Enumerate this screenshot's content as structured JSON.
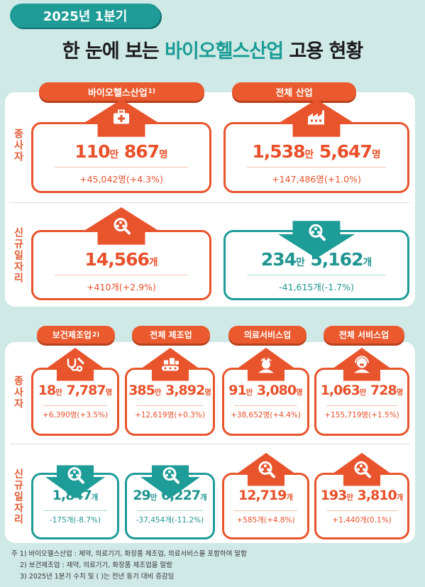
{
  "header": {
    "badge": "2025년 1분기",
    "title_prefix": "한 눈에 보는 ",
    "title_highlight": "바이오헬스산업",
    "title_suffix": " 고용 현황"
  },
  "side_labels": {
    "employees": "종사자",
    "new_jobs": "신규일자리"
  },
  "colors": {
    "orange": "#e8542c",
    "teal": "#1e9c98",
    "background": "#cfe9e6"
  },
  "top": {
    "columns": [
      {
        "label": "바이오헬스산업",
        "note_mark": "1)"
      },
      {
        "label": "전체 산업",
        "note_mark": ""
      }
    ],
    "employees": [
      {
        "icon": "medical-kit-icon",
        "direction": "up",
        "n1": "110",
        "u1": "만",
        "n2": "867",
        "u2": "명",
        "change": "+45,042명(+4.3%)"
      },
      {
        "icon": "factory-icon",
        "direction": "up",
        "n1": "1,538",
        "u1": "만",
        "n2": "5,647",
        "u2": "명",
        "change": "+147,486명(+1.0%)"
      }
    ],
    "new_jobs": [
      {
        "icon": "job-search-icon",
        "direction": "up",
        "n1": "",
        "u1": "",
        "n2": "14,566",
        "u2": "개",
        "change": "+410개(+2.9%)"
      },
      {
        "icon": "job-search-icon",
        "direction": "down",
        "n1": "234",
        "u1": "만",
        "n2": "5,162",
        "u2": "개",
        "change": "-41,615개(-1.7%)"
      }
    ]
  },
  "bottom": {
    "columns": [
      {
        "label": "보건제조업",
        "note_mark": "2)"
      },
      {
        "label": "전체 제조업",
        "note_mark": ""
      },
      {
        "label": "의료서비스업",
        "note_mark": ""
      },
      {
        "label": "전체 서비스업",
        "note_mark": ""
      }
    ],
    "employees": [
      {
        "icon": "medical-tools-icon",
        "direction": "up",
        "n1": "18",
        "u1": "만",
        "n2": "7,787",
        "u2": "명",
        "change": "+6,390명(+3.5%)"
      },
      {
        "icon": "conveyor-icon",
        "direction": "up",
        "n1": "385",
        "u1": "만",
        "n2": "3,892",
        "u2": "명",
        "change": "+12,619명(+0.3%)"
      },
      {
        "icon": "nurse-icon",
        "direction": "up",
        "n1": "91",
        "u1": "만",
        "n2": "3,080",
        "u2": "명",
        "change": "+38,652명(+4.4%)"
      },
      {
        "icon": "service-worker-icon",
        "direction": "up",
        "n1": "1,063",
        "u1": "만",
        "n2": "728",
        "u2": "명",
        "change": "+155,719명(+1.5%)"
      }
    ],
    "new_jobs": [
      {
        "icon": "job-search-icon",
        "direction": "down",
        "n1": "",
        "u1": "",
        "n2": "1,847",
        "u2": "개",
        "change": "-175개(-8.7%)"
      },
      {
        "icon": "job-search-icon",
        "direction": "down",
        "n1": "29",
        "u1": "만",
        "n2": "6,227",
        "u2": "개",
        "change": "-37,454개(-11.2%)"
      },
      {
        "icon": "job-search-icon",
        "direction": "up",
        "n1": "",
        "u1": "",
        "n2": "12,719",
        "u2": "개",
        "change": "+585개(+4.8%)"
      },
      {
        "icon": "job-search-icon",
        "direction": "up",
        "n1": "193",
        "u1": "만",
        "n2": "3,810",
        "u2": "개",
        "change": "+1,440개(0.1%)"
      }
    ]
  },
  "notes": [
    "주 1) 바이오헬스산업 : 제약, 의료기기, 화장품 제조업, 의료서비스를 포함하여 말함",
    "2) 보건제조업 : 제약, 의료기기, 화장품 제조업을 말함",
    "3) 2025년 1분기 수치 및 ( )는 전년 동기 대비 증감임"
  ]
}
